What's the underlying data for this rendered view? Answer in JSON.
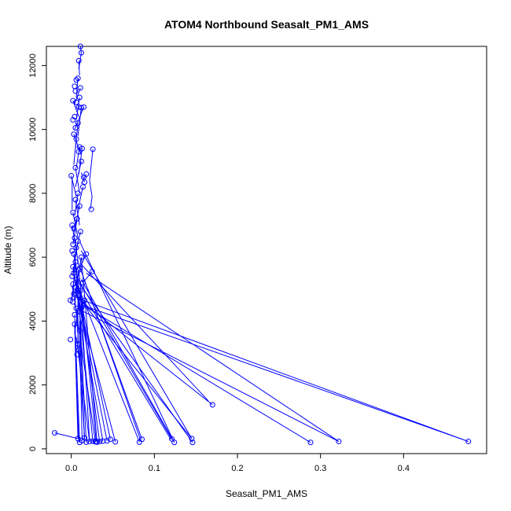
{
  "chart_data": {
    "type": "line",
    "title": "ATOM4 Northbound Seasalt_PM1_AMS",
    "xlabel": "Seasalt_PM1_AMS",
    "ylabel": "Altitude (m)",
    "xlim": [
      -0.03,
      0.5
    ],
    "ylim": [
      -150,
      12600
    ],
    "x_ticks": [
      0.0,
      0.1,
      0.2,
      0.3,
      0.4
    ],
    "x_tick_labels": [
      "0.0",
      "0.1",
      "0.2",
      "0.3",
      "0.4"
    ],
    "y_ticks": [
      0,
      2000,
      4000,
      6000,
      8000,
      10000,
      12000
    ],
    "y_tick_labels": [
      "0",
      "2000",
      "4000",
      "6000",
      "8000",
      "10000",
      "12000"
    ],
    "grid": false,
    "series": [
      {
        "color": "#0000ff",
        "marker": "open-circle",
        "points": [
          [
            0.012,
            12400
          ],
          [
            0.009,
            12150
          ],
          [
            0.011,
            12600
          ],
          [
            0.008,
            11600
          ],
          [
            0.006,
            11550
          ],
          [
            0.011,
            11300
          ],
          [
            0.005,
            11200
          ],
          [
            0.004,
            11350
          ],
          [
            0.01,
            11000
          ],
          [
            0.002,
            10900
          ],
          [
            0.006,
            10850
          ],
          [
            0.009,
            10700
          ],
          [
            0.015,
            10700
          ],
          [
            0.012,
            10680
          ],
          [
            0.004,
            10400
          ],
          [
            0.002,
            10300
          ],
          [
            0.008,
            10200
          ],
          [
            0.005,
            10050
          ],
          [
            0.003,
            9850
          ],
          [
            0.006,
            9700
          ],
          [
            0.01,
            9450
          ],
          [
            0.013,
            9400
          ],
          [
            0.026,
            9380
          ],
          [
            0.009,
            9300
          ],
          [
            0.012,
            9000
          ],
          [
            0.005,
            8800
          ],
          [
            0.018,
            8600
          ],
          [
            0.015,
            8500
          ],
          [
            0.0,
            8550
          ],
          [
            0.016,
            8350
          ],
          [
            0.014,
            8200
          ],
          [
            0.008,
            8000
          ],
          [
            0.005,
            7800
          ],
          [
            0.01,
            7600
          ],
          [
            0.024,
            7500
          ],
          [
            0.002,
            7400
          ],
          [
            0.007,
            7200
          ],
          [
            0.001,
            7000
          ],
          [
            0.003,
            6900
          ],
          [
            0.011,
            6800
          ],
          [
            0.004,
            6600
          ],
          [
            0.008,
            6500
          ],
          [
            0.002,
            6400
          ],
          [
            0.006,
            6300
          ],
          [
            0.001,
            6200
          ],
          [
            0.003,
            6100
          ],
          [
            0.012,
            6000
          ],
          [
            0.005,
            5850
          ],
          [
            0.002,
            5700
          ],
          [
            0.009,
            5600
          ],
          [
            0.003,
            5500
          ],
          [
            0.001,
            5400
          ],
          [
            0.006,
            5300
          ],
          [
            0.002,
            5150
          ],
          [
            0.004,
            5050
          ],
          [
            0.011,
            4950
          ],
          [
            0.003,
            4850
          ],
          [
            0.008,
            4800
          ],
          [
            -0.001,
            4650
          ],
          [
            0.002,
            4600
          ],
          [
            0.015,
            4500
          ],
          [
            0.006,
            4400
          ],
          [
            0.01,
            4300
          ],
          [
            0.004,
            4200
          ],
          [
            -0.001,
            3420
          ],
          [
            0.008,
            3280
          ],
          [
            0.009,
            3100
          ],
          [
            0.007,
            2950
          ],
          [
            0.004,
            3900
          ],
          [
            0.01,
            3700
          ],
          [
            -0.02,
            500
          ],
          [
            0.008,
            320
          ],
          [
            0.013,
            260
          ],
          [
            0.016,
            340
          ],
          [
            0.01,
            200
          ],
          [
            0.018,
            210
          ],
          [
            0.022,
            230
          ],
          [
            0.026,
            240
          ],
          [
            0.029,
            220
          ],
          [
            0.03,
            230
          ],
          [
            0.031,
            210
          ],
          [
            0.034,
            230
          ],
          [
            0.038,
            240
          ],
          [
            0.043,
            250
          ],
          [
            0.047,
            300
          ],
          [
            0.053,
            220
          ],
          [
            0.082,
            210
          ],
          [
            0.085,
            300
          ],
          [
            0.121,
            310
          ],
          [
            0.124,
            200
          ],
          [
            0.145,
            320
          ],
          [
            0.146,
            200
          ],
          [
            0.17,
            1380
          ],
          [
            0.288,
            200
          ],
          [
            0.322,
            230
          ],
          [
            0.478,
            230
          ],
          [
            0.018,
            6100
          ],
          [
            0.01,
            5650
          ],
          [
            0.025,
            5550
          ],
          [
            0.014,
            5200
          ],
          [
            0.009,
            4950
          ],
          [
            0.016,
            4650
          ],
          [
            0.012,
            4400
          ]
        ],
        "segments": [
          [
            0.012,
            12400,
            0.011,
            12600
          ],
          [
            0.012,
            12400,
            0.009,
            11900
          ],
          [
            0.009,
            12150,
            0.01,
            11700
          ],
          [
            0.008,
            11600,
            0.006,
            11000
          ],
          [
            0.011,
            11300,
            0.004,
            10800
          ],
          [
            0.01,
            11000,
            0.006,
            10300
          ],
          [
            0.002,
            10900,
            0.009,
            10400
          ],
          [
            0.015,
            10700,
            0.004,
            10000
          ],
          [
            0.012,
            10680,
            0.008,
            9800
          ],
          [
            0.008,
            10200,
            0.005,
            9400
          ],
          [
            0.003,
            9850,
            0.012,
            9200
          ],
          [
            0.01,
            9450,
            0.006,
            8800
          ],
          [
            0.013,
            9400,
            0.009,
            8600
          ],
          [
            0.026,
            9380,
            0.022,
            8400
          ],
          [
            0.022,
            8400,
            0.025,
            7900
          ],
          [
            0.025,
            7900,
            0.023,
            7500
          ],
          [
            0.012,
            9000,
            0.005,
            8200
          ],
          [
            0.005,
            8800,
            0.01,
            8000
          ],
          [
            0.018,
            8600,
            0.012,
            8300
          ],
          [
            0.0,
            8550,
            0.006,
            7900
          ],
          [
            0.016,
            8350,
            0.012,
            8650
          ],
          [
            0.014,
            8200,
            0.008,
            7500
          ],
          [
            0.008,
            8000,
            0.004,
            7300
          ],
          [
            0.005,
            7800,
            0.01,
            7000
          ],
          [
            0.01,
            7600,
            0.003,
            6800
          ],
          [
            0.002,
            7400,
            0.008,
            6600
          ],
          [
            0.007,
            7200,
            0.002,
            6400
          ],
          [
            0.001,
            7000,
            0.006,
            6200
          ],
          [
            0.011,
            6800,
            0.004,
            6000
          ],
          [
            0.004,
            6600,
            0.009,
            5700
          ],
          [
            0.008,
            6500,
            0.002,
            5500
          ],
          [
            0.006,
            6300,
            0.003,
            5300
          ],
          [
            0.003,
            6100,
            0.008,
            5000
          ],
          [
            0.012,
            6000,
            0.005,
            4900
          ],
          [
            0.005,
            5850,
            0.001,
            4700
          ],
          [
            0.009,
            5600,
            0.004,
            4500
          ],
          [
            0.006,
            5300,
            0.01,
            4200
          ],
          [
            0.002,
            5150,
            0.007,
            4000
          ],
          [
            0.011,
            4950,
            0.004,
            3600
          ],
          [
            0.008,
            4800,
            0.008,
            3280
          ],
          [
            0.015,
            4500,
            0.01,
            3500
          ],
          [
            -0.001,
            4650,
            0.003,
            4900
          ],
          [
            0.001,
            8500,
            0.001,
            7500
          ],
          [
            0.006,
            9700,
            0.003,
            8900
          ],
          [
            0.004,
            3900,
            0.008,
            320
          ],
          [
            0.01,
            3700,
            0.013,
            260
          ],
          [
            0.006,
            4400,
            0.016,
            340
          ],
          [
            0.004,
            4200,
            0.01,
            200
          ],
          [
            0.01,
            4300,
            0.018,
            210
          ],
          [
            0.011,
            4950,
            0.022,
            230
          ],
          [
            0.008,
            4800,
            0.026,
            240
          ],
          [
            0.003,
            4850,
            0.029,
            220
          ],
          [
            0.009,
            5600,
            0.03,
            230
          ],
          [
            0.012,
            6000,
            0.031,
            210
          ],
          [
            0.005,
            5850,
            0.034,
            230
          ],
          [
            0.002,
            5700,
            0.038,
            240
          ],
          [
            0.003,
            5500,
            0.043,
            250
          ],
          [
            0.006,
            5300,
            0.047,
            300
          ],
          [
            0.004,
            5050,
            0.053,
            220
          ],
          [
            0.008,
            5100,
            0.082,
            210
          ],
          [
            0.01,
            5700,
            0.085,
            300
          ],
          [
            0.006,
            5400,
            0.121,
            310
          ],
          [
            0.012,
            5300,
            0.124,
            200
          ],
          [
            0.004,
            4900,
            0.145,
            320
          ],
          [
            0.009,
            5200,
            0.146,
            200
          ],
          [
            0.012,
            6200,
            0.145,
            320
          ],
          [
            0.01,
            6500,
            0.124,
            200
          ],
          [
            0.008,
            4700,
            0.17,
            1380
          ],
          [
            0.011,
            5800,
            0.165,
            1500
          ],
          [
            0.014,
            4500,
            0.288,
            200
          ],
          [
            0.007,
            4400,
            0.322,
            230
          ],
          [
            0.018,
            5500,
            0.322,
            230
          ],
          [
            0.009,
            4700,
            0.478,
            230
          ],
          [
            0.013,
            4500,
            0.478,
            230
          ],
          [
            -0.02,
            500,
            0.008,
            320
          ],
          [
            0.005,
            3000,
            0.009,
            200
          ],
          [
            0.01,
            4000,
            0.016,
            200
          ],
          [
            0.006,
            3500,
            0.022,
            220
          ],
          [
            0.02,
            5000,
            0.084,
            230
          ],
          [
            0.015,
            4800,
            0.12,
            290
          ],
          [
            0.018,
            6100,
            0.01,
            5650
          ],
          [
            0.025,
            5550,
            0.014,
            5200
          ],
          [
            0.016,
            4650,
            0.012,
            4400
          ]
        ]
      }
    ]
  }
}
